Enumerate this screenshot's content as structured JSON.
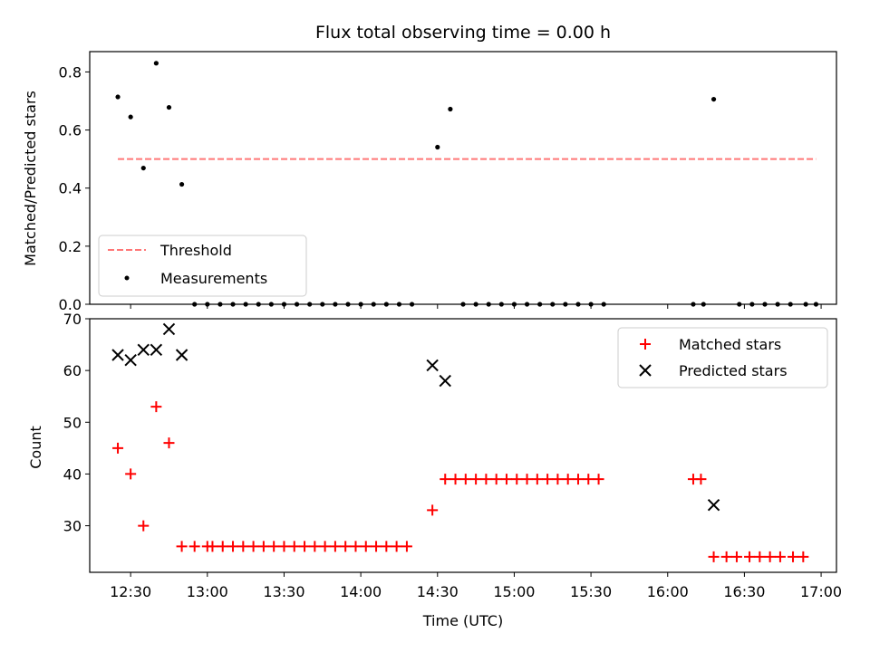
{
  "chart_data": [
    {
      "type": "scatter",
      "title": "Flux total observing time = 0.00 h",
      "xlabel": "",
      "ylabel": "Matched/Predicted stars",
      "xlim": [
        "12:14",
        "17:06"
      ],
      "ylim": [
        0,
        0.87
      ],
      "yticks": [
        0.0,
        0.2,
        0.4,
        0.6,
        0.8
      ],
      "ytick_labels": [
        "0.0",
        "0.2",
        "0.4",
        "0.6",
        "0.8"
      ],
      "legend_position": "lower-left",
      "threshold": {
        "name": "Threshold",
        "value": 0.5,
        "x_start": "12:25",
        "x_end": "16:58",
        "color": "#ff7777",
        "style": "dashed"
      },
      "series": [
        {
          "name": "Measurements",
          "color": "#000000",
          "points": [
            [
              "12:25",
              0.714
            ],
            [
              "12:30",
              0.645
            ],
            [
              "12:35",
              0.469
            ],
            [
              "12:40",
              0.83
            ],
            [
              "12:45",
              0.678
            ],
            [
              "12:50",
              0.413
            ],
            [
              "12:55",
              0
            ],
            [
              "13:00",
              0
            ],
            [
              "13:05",
              0
            ],
            [
              "13:10",
              0
            ],
            [
              "13:15",
              0
            ],
            [
              "13:20",
              0
            ],
            [
              "13:25",
              0
            ],
            [
              "13:30",
              0
            ],
            [
              "13:35",
              0
            ],
            [
              "13:40",
              0
            ],
            [
              "13:45",
              0
            ],
            [
              "13:50",
              0
            ],
            [
              "13:55",
              0
            ],
            [
              "14:00",
              0
            ],
            [
              "14:05",
              0
            ],
            [
              "14:10",
              0
            ],
            [
              "14:15",
              0
            ],
            [
              "14:20",
              0
            ],
            [
              "14:30",
              0.541
            ],
            [
              "14:35",
              0.672
            ],
            [
              "14:40",
              0
            ],
            [
              "14:45",
              0
            ],
            [
              "14:50",
              0
            ],
            [
              "14:55",
              0
            ],
            [
              "15:00",
              0
            ],
            [
              "15:05",
              0
            ],
            [
              "15:10",
              0
            ],
            [
              "15:15",
              0
            ],
            [
              "15:20",
              0
            ],
            [
              "15:25",
              0
            ],
            [
              "15:30",
              0
            ],
            [
              "15:35",
              0
            ],
            [
              "16:10",
              0
            ],
            [
              "16:14",
              0
            ],
            [
              "16:18",
              0.706
            ],
            [
              "16:28",
              0
            ],
            [
              "16:33",
              0
            ],
            [
              "16:38",
              0
            ],
            [
              "16:43",
              0
            ],
            [
              "16:48",
              0
            ],
            [
              "16:54",
              0
            ],
            [
              "16:58",
              0
            ]
          ]
        }
      ]
    },
    {
      "type": "scatter",
      "title": "",
      "xlabel": "Time (UTC)",
      "ylabel": "Count",
      "xlim": [
        "12:14",
        "17:06"
      ],
      "ylim": [
        21,
        70
      ],
      "yticks": [
        30,
        40,
        50,
        60,
        70
      ],
      "ytick_labels": [
        "30",
        "40",
        "50",
        "60",
        "70"
      ],
      "xticks": [
        "12:30",
        "13:00",
        "13:30",
        "14:00",
        "14:30",
        "15:00",
        "15:30",
        "16:00",
        "16:30",
        "17:00"
      ],
      "xtick_labels": [
        "12:30",
        "13:00",
        "13:30",
        "14:00",
        "14:30",
        "15:00",
        "15:30",
        "16:00",
        "16:30",
        "17:00"
      ],
      "legend_position": "upper-right",
      "series": [
        {
          "name": "Matched stars",
          "color": "#ff0000",
          "marker": "plus",
          "points": [
            [
              "12:25",
              45
            ],
            [
              "12:30",
              40
            ],
            [
              "12:35",
              30
            ],
            [
              "12:40",
              53
            ],
            [
              "12:45",
              46
            ],
            [
              "12:50",
              26
            ],
            [
              "12:55",
              26
            ],
            [
              "13:00",
              26
            ],
            [
              "13:02",
              26
            ],
            [
              "13:06",
              26
            ],
            [
              "13:10",
              26
            ],
            [
              "13:14",
              26
            ],
            [
              "13:18",
              26
            ],
            [
              "13:22",
              26
            ],
            [
              "13:26",
              26
            ],
            [
              "13:30",
              26
            ],
            [
              "13:34",
              26
            ],
            [
              "13:38",
              26
            ],
            [
              "13:42",
              26
            ],
            [
              "13:46",
              26
            ],
            [
              "13:50",
              26
            ],
            [
              "13:54",
              26
            ],
            [
              "13:58",
              26
            ],
            [
              "14:02",
              26
            ],
            [
              "14:06",
              26
            ],
            [
              "14:10",
              26
            ],
            [
              "14:14",
              26
            ],
            [
              "14:18",
              26
            ],
            [
              "14:28",
              33
            ],
            [
              "14:33",
              39
            ],
            [
              "14:37",
              39
            ],
            [
              "14:41",
              39
            ],
            [
              "14:45",
              39
            ],
            [
              "14:49",
              39
            ],
            [
              "14:53",
              39
            ],
            [
              "14:57",
              39
            ],
            [
              "15:01",
              39
            ],
            [
              "15:05",
              39
            ],
            [
              "15:09",
              39
            ],
            [
              "15:13",
              39
            ],
            [
              "15:17",
              39
            ],
            [
              "15:21",
              39
            ],
            [
              "15:25",
              39
            ],
            [
              "15:29",
              39
            ],
            [
              "15:33",
              39
            ],
            [
              "16:10",
              39
            ],
            [
              "16:13",
              39
            ],
            [
              "16:18",
              24
            ],
            [
              "16:23",
              24
            ],
            [
              "16:27",
              24
            ],
            [
              "16:32",
              24
            ],
            [
              "16:36",
              24
            ],
            [
              "16:40",
              24
            ],
            [
              "16:44",
              24
            ],
            [
              "16:49",
              24
            ],
            [
              "16:53",
              24
            ]
          ]
        },
        {
          "name": "Predicted stars",
          "color": "#000000",
          "marker": "x",
          "points": [
            [
              "12:25",
              63
            ],
            [
              "12:30",
              62
            ],
            [
              "12:35",
              64
            ],
            [
              "12:40",
              64
            ],
            [
              "12:45",
              68
            ],
            [
              "12:50",
              63
            ],
            [
              "14:28",
              61
            ],
            [
              "14:33",
              58
            ],
            [
              "16:18",
              34
            ]
          ]
        }
      ]
    }
  ]
}
